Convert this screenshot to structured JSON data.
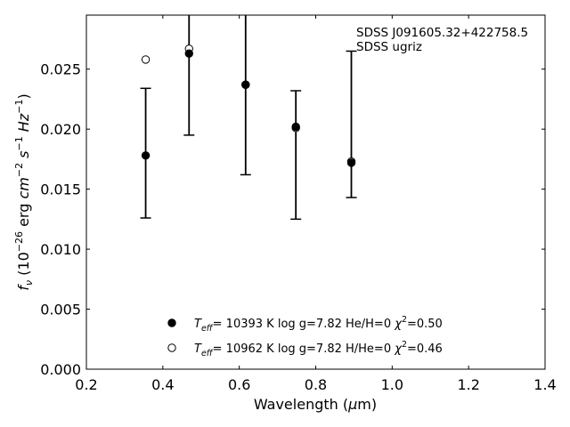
{
  "chart_data": {
    "type": "scatter",
    "xlabel_main": "Wavelength (",
    "xlabel_mu": "μ",
    "xlabel_tail": "m)",
    "ylabel": {
      "f": "f",
      "nu": "ν",
      "open": " (10",
      "exp26": "−26",
      "erg": " erg ",
      "cm": "cm",
      "exp2": "−2",
      "s": " s",
      "exp1a": "−1",
      "hz": " Hz",
      "exp1b": "−1",
      "close": ")"
    },
    "xlim": [
      0.2,
      1.4
    ],
    "ylim": [
      0.0,
      0.0295
    ],
    "xticks": [
      0.2,
      0.4,
      0.6,
      0.8,
      1.0,
      1.2,
      1.4
    ],
    "xtick_labels": [
      "0.2",
      "0.4",
      "0.6",
      "0.8",
      "1.0",
      "1.2",
      "1.4"
    ],
    "yticks": [
      0.0,
      0.005,
      0.01,
      0.015,
      0.02,
      0.025
    ],
    "ytick_labels": [
      "0.000",
      "0.005",
      "0.010",
      "0.015",
      "0.020",
      "0.025"
    ],
    "annotation": [
      "SDSS J091605.32+422758.5",
      "SDSS ugriz"
    ],
    "observed": {
      "x": [
        0.3551,
        0.4686,
        0.6166,
        0.748,
        0.8932
      ],
      "y": [
        0.0178,
        0.0263,
        0.0237,
        0.0202,
        0.0172
      ],
      "yerr_low": [
        0.0126,
        0.0195,
        0.0162,
        0.0125,
        0.0143
      ],
      "yerr_high": [
        0.0234,
        0.0305,
        0.031,
        0.0232,
        0.0265
      ]
    },
    "series": [
      {
        "marker": "filled",
        "x": [
          0.3551,
          0.4686,
          0.6166,
          0.748,
          0.8932
        ],
        "y": [
          0.0178,
          0.0263,
          0.0237,
          0.0202,
          0.0172
        ],
        "legend": {
          "teff_val": "= 10393 K  log g=7.82  He/H=0  ",
          "chi_val": "=0.50"
        }
      },
      {
        "marker": "open",
        "x": [
          0.3551,
          0.4686,
          0.6166,
          0.748,
          0.8932
        ],
        "y": [
          0.0258,
          0.0267,
          0.0237,
          0.0201,
          0.0173
        ],
        "legend": {
          "teff_val": "= 10962 K  log g=7.82  H/He=0  ",
          "chi_val": "=0.46"
        }
      }
    ],
    "legend_common": {
      "T": "T",
      "eff": "eff",
      "chi": "χ",
      "sq": "2"
    },
    "legend_position": "lower-center",
    "grid": false,
    "colors": {
      "marker": "#000000",
      "open_fill": "#ffffff",
      "axes": "#000000"
    }
  }
}
